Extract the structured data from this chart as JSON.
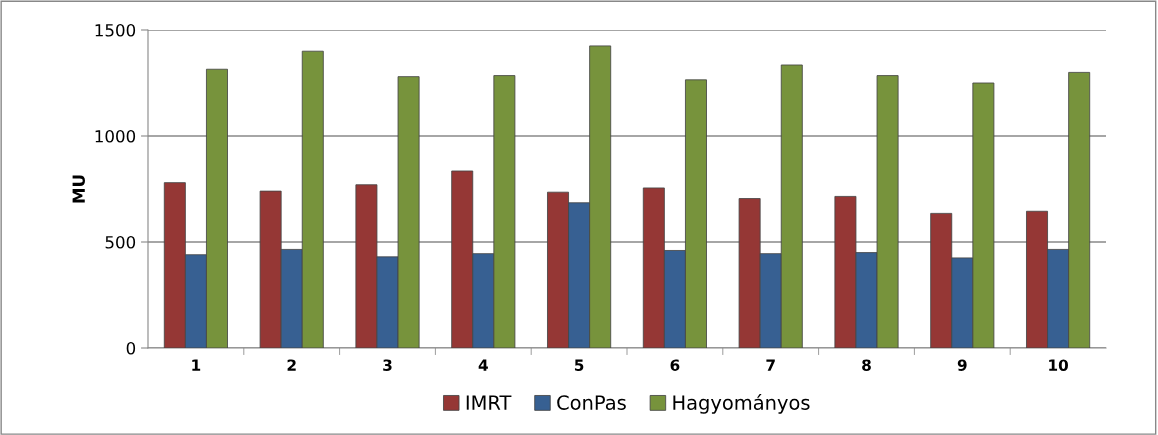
{
  "chart_data": {
    "type": "bar",
    "ylabel": "MU",
    "categories": [
      "1",
      "2",
      "3",
      "4",
      "5",
      "6",
      "7",
      "8",
      "9",
      "10"
    ],
    "series": [
      {
        "name": "IMRT",
        "color": "#953735",
        "values": [
          780,
          740,
          770,
          835,
          735,
          755,
          705,
          715,
          635,
          645
        ]
      },
      {
        "name": "ConPas",
        "color": "#376092",
        "values": [
          440,
          465,
          430,
          445,
          685,
          460,
          445,
          450,
          425,
          465
        ]
      },
      {
        "name": "Hagyományos",
        "color": "#77933c",
        "values": [
          1315,
          1400,
          1280,
          1285,
          1425,
          1265,
          1335,
          1285,
          1250,
          1300
        ]
      }
    ],
    "ylim": [
      0,
      1500
    ],
    "yticks": [
      0,
      500,
      1000,
      1500
    ],
    "grid": "y",
    "legend": "bottom"
  }
}
